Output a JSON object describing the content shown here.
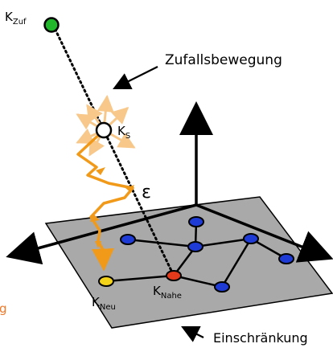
{
  "labels": {
    "k_zuf_main": "K",
    "k_zuf_sub": "Zuf",
    "k_s_main": "K",
    "k_s_sub": "S",
    "epsilon": "ε",
    "k_nahe_main": "K",
    "k_nahe_sub": "Nahe",
    "k_neu_main": "K",
    "k_neu_sub": "Neu",
    "zufallsbewegung": "Zufallsbewegung",
    "einschraenkung": "Einschränkung",
    "cut_off_letter": "g"
  },
  "colors": {
    "plane_fill": "#a9a9a9",
    "plane_stroke": "#000000",
    "axis": "#000000",
    "node_blue": "#1f3bd6",
    "node_red": "#e23a1a",
    "node_yellow": "#f3d21a",
    "node_green": "#22b82b",
    "node_white": "#ffffff",
    "path_orange": "#f19a1a",
    "burst_orange": "#f8c88a",
    "dotted_line": "#000000",
    "cut_off_letter": "#f07a2a"
  },
  "icons": {
    "arrow_to_dotted_line": "arrow-icon",
    "arrow_to_plane": "arrow-icon"
  }
}
